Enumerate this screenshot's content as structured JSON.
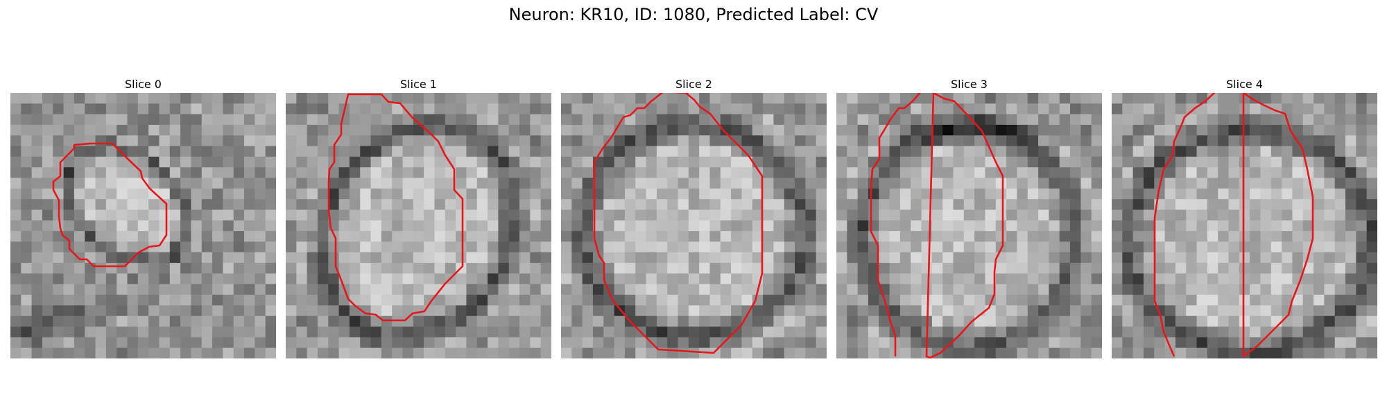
{
  "figure": {
    "title": "Neuron: KR10, ID: 1080, Predicted Label: CV"
  },
  "panels": [
    {
      "title": "Slice 0",
      "contour_color": "#e8161b",
      "colormap": "grayscale microscopy"
    },
    {
      "title": "Slice 1",
      "contour_color": "#e8161b",
      "colormap": "grayscale microscopy"
    },
    {
      "title": "Slice 2",
      "contour_color": "#e8161b",
      "colormap": "grayscale microscopy"
    },
    {
      "title": "Slice 3",
      "contour_color": "#e8161b",
      "colormap": "grayscale microscopy"
    },
    {
      "title": "Slice 4",
      "contour_color": "#e8161b",
      "colormap": "grayscale microscopy"
    }
  ]
}
